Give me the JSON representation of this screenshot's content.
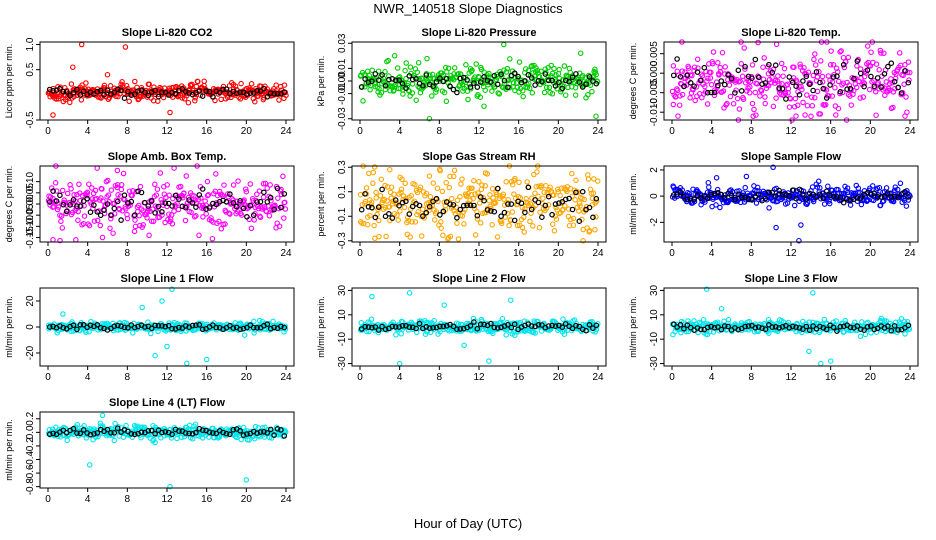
{
  "page_title": "NWR_140518  Slope Diagnostics",
  "x_axis_label": "Hour of Day (UTC)",
  "chart_data": [
    {
      "id": "co2",
      "type": "scatter",
      "title": "Slope Li-820 CO2",
      "ylabel": "Licor ppm per min.",
      "xlim": [
        0,
        24
      ],
      "xticks": [
        0,
        4,
        8,
        12,
        16,
        20,
        24
      ],
      "ylim": [
        -0.5,
        1.05
      ],
      "yticks": [
        -0.5,
        0.5,
        1.0
      ],
      "ytick_labels": [
        "-0.5",
        "0.5",
        "1.0"
      ],
      "color": "#ff0000",
      "center": 0.05,
      "spread": 0.08,
      "outliers": [
        {
          "x": 3.4,
          "y": 1.0
        },
        {
          "x": 7.8,
          "y": 0.95
        },
        {
          "x": 12.3,
          "y": -0.35
        },
        {
          "x": 2.5,
          "y": 0.55
        },
        {
          "x": 6.0,
          "y": 0.4
        },
        {
          "x": 0.5,
          "y": -0.4
        }
      ]
    },
    {
      "id": "pressure",
      "type": "scatter",
      "title": "Slope Li-820 Pressure",
      "ylabel": "kPa per min.",
      "xlim": [
        0,
        24
      ],
      "xticks": [
        0,
        4,
        8,
        12,
        16,
        20,
        24
      ],
      "ylim": [
        -0.031,
        0.031
      ],
      "yticks": [
        -0.03,
        -0.01,
        0.0,
        0.01,
        0.03
      ],
      "ytick_labels": [
        "-0.03",
        "-0.01",
        "0.00",
        "0.01",
        "0.03"
      ],
      "color": "#00cc00",
      "center": 0.0,
      "spread": 0.006,
      "outliers": [
        {
          "x": 7.0,
          "y": -0.03
        },
        {
          "x": 14.5,
          "y": 0.029
        },
        {
          "x": 23.8,
          "y": -0.028
        },
        {
          "x": 3.5,
          "y": 0.02
        },
        {
          "x": 12.5,
          "y": -0.02
        }
      ]
    },
    {
      "id": "temp",
      "type": "scatter",
      "title": "Slope Li-820 Temp.",
      "ylabel": "degrees C per min.",
      "xlim": [
        0,
        24
      ],
      "xticks": [
        0,
        4,
        8,
        12,
        16,
        20,
        24
      ],
      "ylim": [
        -0.012,
        0.008
      ],
      "yticks": [
        -0.01,
        -0.005,
        0.0,
        0.005
      ],
      "ytick_labels": [
        "-0.010",
        "-0.005",
        "0.000",
        "0.005"
      ],
      "color": "#ff00ff",
      "center": -0.002,
      "spread": 0.004,
      "outliers": [
        {
          "x": 1.0,
          "y": 0.008
        },
        {
          "x": 0.6,
          "y": -0.011
        },
        {
          "x": 23.5,
          "y": -0.011
        },
        {
          "x": 12.5,
          "y": -0.011
        }
      ]
    },
    {
      "id": "ambbox",
      "type": "scatter",
      "title": "Slope Amb. Box Temp.",
      "ylabel": "degrees C per min.",
      "xlim": [
        0,
        24
      ],
      "xticks": [
        0,
        4,
        8,
        12,
        16,
        20,
        24
      ],
      "ylim": [
        -0.17,
        0.17
      ],
      "yticks": [
        -0.15,
        -0.1,
        -0.05,
        0.0,
        0.05,
        0.1
      ],
      "ytick_labels": [
        "-0.15",
        "-0.10",
        "-0.05",
        "0.00",
        "0.05",
        "0.10"
      ],
      "color": "#ff00ff",
      "center": 0.0,
      "spread": 0.06,
      "outliers": [
        {
          "x": 0.5,
          "y": -0.16
        },
        {
          "x": 2.8,
          "y": -0.16
        },
        {
          "x": 5.5,
          "y": -0.15
        },
        {
          "x": 10.2,
          "y": -0.14
        },
        {
          "x": 7.0,
          "y": 0.15
        }
      ]
    },
    {
      "id": "rh",
      "type": "scatter",
      "title": "Slope Gas Stream RH",
      "ylabel": "percent per min.",
      "xlim": [
        0,
        24
      ],
      "xticks": [
        0,
        4,
        8,
        12,
        16,
        20,
        24
      ],
      "ylim": [
        -0.31,
        0.31
      ],
      "yticks": [
        -0.3,
        -0.1,
        0.1,
        0.3
      ],
      "ytick_labels": [
        "-0.3",
        "-0.1",
        "0.1",
        "0.3"
      ],
      "color": "#ffa500",
      "center": 0.0,
      "spread": 0.12,
      "outliers": [
        {
          "x": 1.5,
          "y": -0.28
        },
        {
          "x": 22.5,
          "y": -0.3
        },
        {
          "x": 3.0,
          "y": 0.28
        }
      ]
    },
    {
      "id": "sample",
      "type": "scatter",
      "title": "Slope Sample Flow",
      "ylabel": "ml/min per min.",
      "xlim": [
        0,
        24
      ],
      "xticks": [
        0,
        4,
        8,
        12,
        16,
        20,
        24
      ],
      "ylim": [
        -3.5,
        2.3
      ],
      "yticks": [
        -2,
        0,
        2
      ],
      "ytick_labels": [
        "-2",
        "0",
        "2"
      ],
      "color": "#0000ff",
      "center": 0.0,
      "spread": 0.35,
      "outliers": [
        {
          "x": 12.8,
          "y": -3.4
        },
        {
          "x": 10.2,
          "y": 2.2
        },
        {
          "x": 7.5,
          "y": 1.5
        },
        {
          "x": 10.5,
          "y": -2.4
        },
        {
          "x": 13.0,
          "y": -2.2
        },
        {
          "x": 4.5,
          "y": 1.4
        }
      ]
    },
    {
      "id": "line1",
      "type": "scatter",
      "title": "Slope Line 1 Flow",
      "ylabel": "ml/min per min.",
      "xlim": [
        0,
        24
      ],
      "xticks": [
        0,
        4,
        8,
        12,
        16,
        20,
        24
      ],
      "ylim": [
        -30,
        30
      ],
      "yticks": [
        -20,
        0,
        20
      ],
      "ytick_labels": [
        "-20",
        "0",
        "20"
      ],
      "color": "#00e5ee",
      "center": 0.0,
      "spread": 1.8,
      "outliers": [
        {
          "x": 12.5,
          "y": 29
        },
        {
          "x": 10.8,
          "y": -22
        },
        {
          "x": 16.0,
          "y": -25
        },
        {
          "x": 9.5,
          "y": 15
        },
        {
          "x": 12.0,
          "y": -15
        },
        {
          "x": 1.5,
          "y": 10
        },
        {
          "x": 14.0,
          "y": -28
        },
        {
          "x": 11.5,
          "y": 20
        }
      ]
    },
    {
      "id": "line2",
      "type": "scatter",
      "title": "Slope Line 2 Flow",
      "ylabel": "ml/min per min.",
      "xlim": [
        0,
        24
      ],
      "xticks": [
        0,
        4,
        8,
        12,
        16,
        20,
        24
      ],
      "ylim": [
        -32,
        32
      ],
      "yticks": [
        -30,
        -10,
        10,
        30
      ],
      "ytick_labels": [
        "-30",
        "-10",
        "10",
        "30"
      ],
      "color": "#00e5ee",
      "center": 0.0,
      "spread": 2.5,
      "outliers": [
        {
          "x": 1.2,
          "y": 25
        },
        {
          "x": 5.0,
          "y": 28
        },
        {
          "x": 4.0,
          "y": -30
        },
        {
          "x": 13.0,
          "y": -28
        },
        {
          "x": 10.5,
          "y": -15
        },
        {
          "x": 15.2,
          "y": 22
        },
        {
          "x": 8.5,
          "y": 18
        }
      ]
    },
    {
      "id": "line3",
      "type": "scatter",
      "title": "Slope Line 3 Flow",
      "ylabel": "ml/min per min.",
      "xlim": [
        0,
        24
      ],
      "xticks": [
        0,
        4,
        8,
        12,
        16,
        20,
        24
      ],
      "ylim": [
        -32,
        32
      ],
      "yticks": [
        -30,
        -10,
        10,
        30
      ],
      "ytick_labels": [
        "-30",
        "-10",
        "10",
        "30"
      ],
      "color": "#00e5ee",
      "center": 0.0,
      "spread": 2.5,
      "outliers": [
        {
          "x": 3.5,
          "y": 31
        },
        {
          "x": 14.2,
          "y": 28
        },
        {
          "x": 15.0,
          "y": -30
        },
        {
          "x": 13.8,
          "y": -20
        },
        {
          "x": 5.0,
          "y": 15
        },
        {
          "x": 16.0,
          "y": -28
        }
      ]
    },
    {
      "id": "line4",
      "type": "scatter",
      "title": "Slope Line 4 (LT) Flow",
      "ylabel": "ml/min per min.",
      "xlim": [
        0,
        24
      ],
      "xticks": [
        0,
        4,
        8,
        12,
        16,
        20,
        24
      ],
      "ylim": [
        -0.82,
        0.3
      ],
      "yticks": [
        -0.8,
        -0.6,
        -0.4,
        -0.2,
        0.0,
        0.2
      ],
      "ytick_labels": [
        "-0.8",
        "-0.6",
        "-0.4",
        "-0.2",
        "0.0",
        "0.2"
      ],
      "color": "#00e5ee",
      "center": 0.0,
      "spread": 0.05,
      "outliers": [
        {
          "x": 12.3,
          "y": -0.8
        },
        {
          "x": 20.0,
          "y": -0.7
        },
        {
          "x": 4.2,
          "y": -0.48
        },
        {
          "x": 5.5,
          "y": 0.25
        }
      ]
    }
  ]
}
